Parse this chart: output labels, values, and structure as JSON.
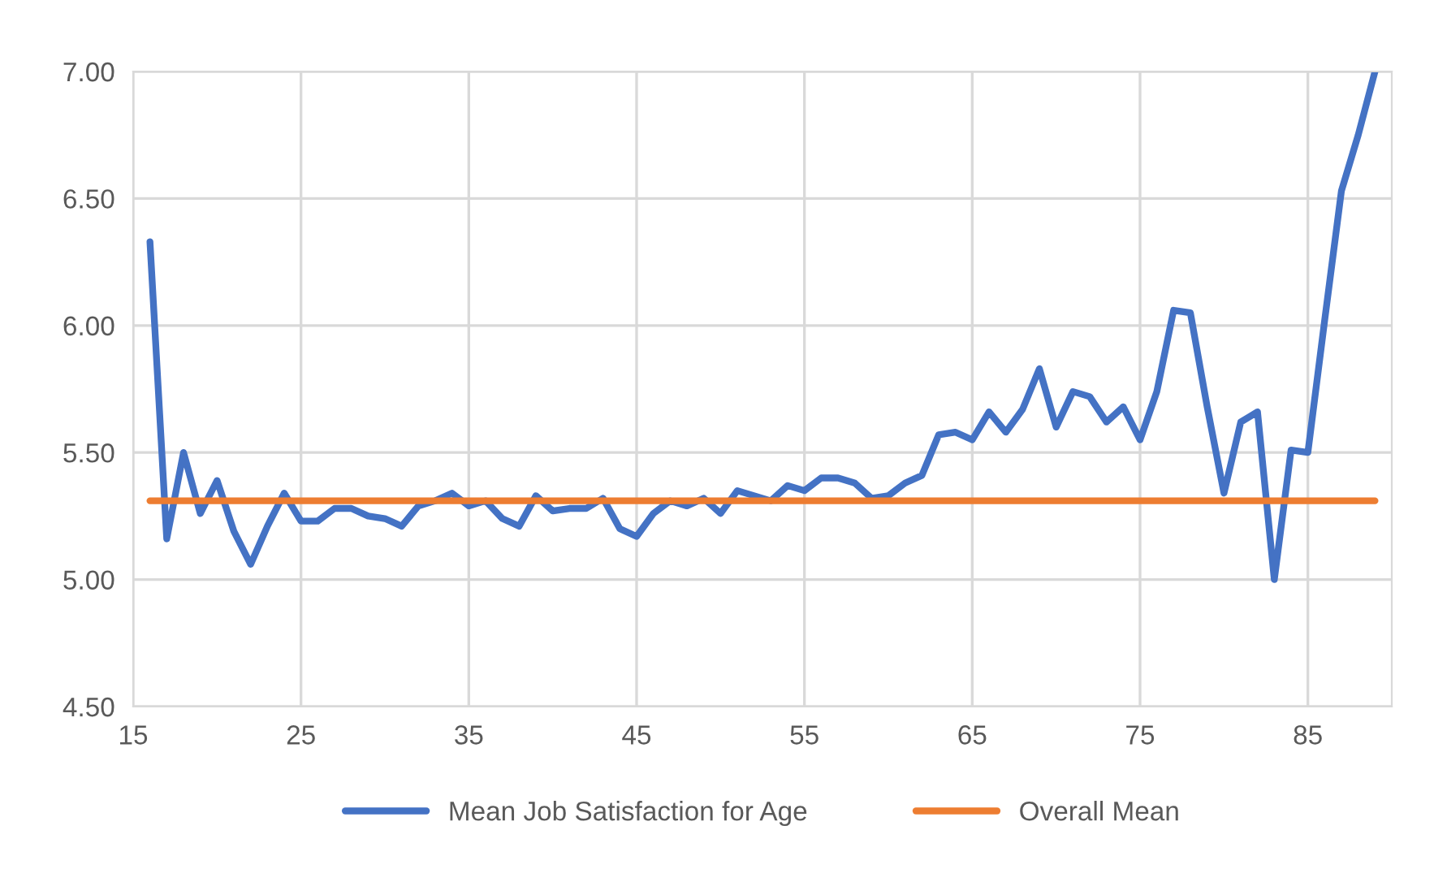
{
  "chart_data": {
    "type": "line",
    "xlim": [
      15,
      90
    ],
    "ylim": [
      4.5,
      7.0
    ],
    "xticks": [
      15,
      25,
      35,
      45,
      55,
      65,
      75,
      85
    ],
    "yticks": [
      {
        "value": 4.5,
        "label": "4.50"
      },
      {
        "value": 5.0,
        "label": "5.00"
      },
      {
        "value": 5.5,
        "label": "5.50"
      },
      {
        "value": 6.0,
        "label": "6.00"
      },
      {
        "value": 6.5,
        "label": "6.50"
      },
      {
        "value": 7.0,
        "label": "7.00"
      }
    ],
    "grid": true,
    "legend": "bottom",
    "line_style": "solid",
    "marker": "none",
    "series": [
      {
        "name": "Mean Job Satisfaction for Age",
        "color": "#4472c4",
        "x": [
          16,
          17,
          18,
          19,
          20,
          21,
          22,
          23,
          24,
          25,
          26,
          27,
          28,
          29,
          30,
          31,
          32,
          33,
          34,
          35,
          36,
          37,
          38,
          39,
          40,
          41,
          42,
          43,
          44,
          45,
          46,
          47,
          48,
          49,
          50,
          51,
          52,
          53,
          54,
          55,
          56,
          57,
          58,
          59,
          60,
          61,
          62,
          63,
          64,
          65,
          66,
          67,
          68,
          69,
          70,
          71,
          72,
          73,
          74,
          75,
          76,
          77,
          78,
          79,
          80,
          81,
          82,
          83,
          84,
          85,
          86,
          87,
          88,
          89
        ],
        "values": [
          6.33,
          5.16,
          5.5,
          5.26,
          5.39,
          5.19,
          5.06,
          5.21,
          5.34,
          5.23,
          5.23,
          5.28,
          5.28,
          5.25,
          5.24,
          5.21,
          5.29,
          5.31,
          5.34,
          5.29,
          5.31,
          5.24,
          5.21,
          5.33,
          5.27,
          5.28,
          5.28,
          5.32,
          5.2,
          5.17,
          5.26,
          5.31,
          5.29,
          5.32,
          5.26,
          5.35,
          5.33,
          5.31,
          5.37,
          5.35,
          5.4,
          5.4,
          5.38,
          5.32,
          5.33,
          5.38,
          5.41,
          5.57,
          5.58,
          5.55,
          5.66,
          5.58,
          5.67,
          5.83,
          5.6,
          5.74,
          5.72,
          5.62,
          5.68,
          5.55,
          5.74,
          6.06,
          6.05,
          5.68,
          5.34,
          5.62,
          5.66,
          5.0,
          5.51,
          5.5,
          6.02,
          6.53,
          6.75,
          7.0
        ]
      },
      {
        "name": "Overall Mean",
        "color": "#ed7d31",
        "x": [
          16,
          89
        ],
        "values": [
          5.31,
          5.31
        ]
      }
    ]
  }
}
